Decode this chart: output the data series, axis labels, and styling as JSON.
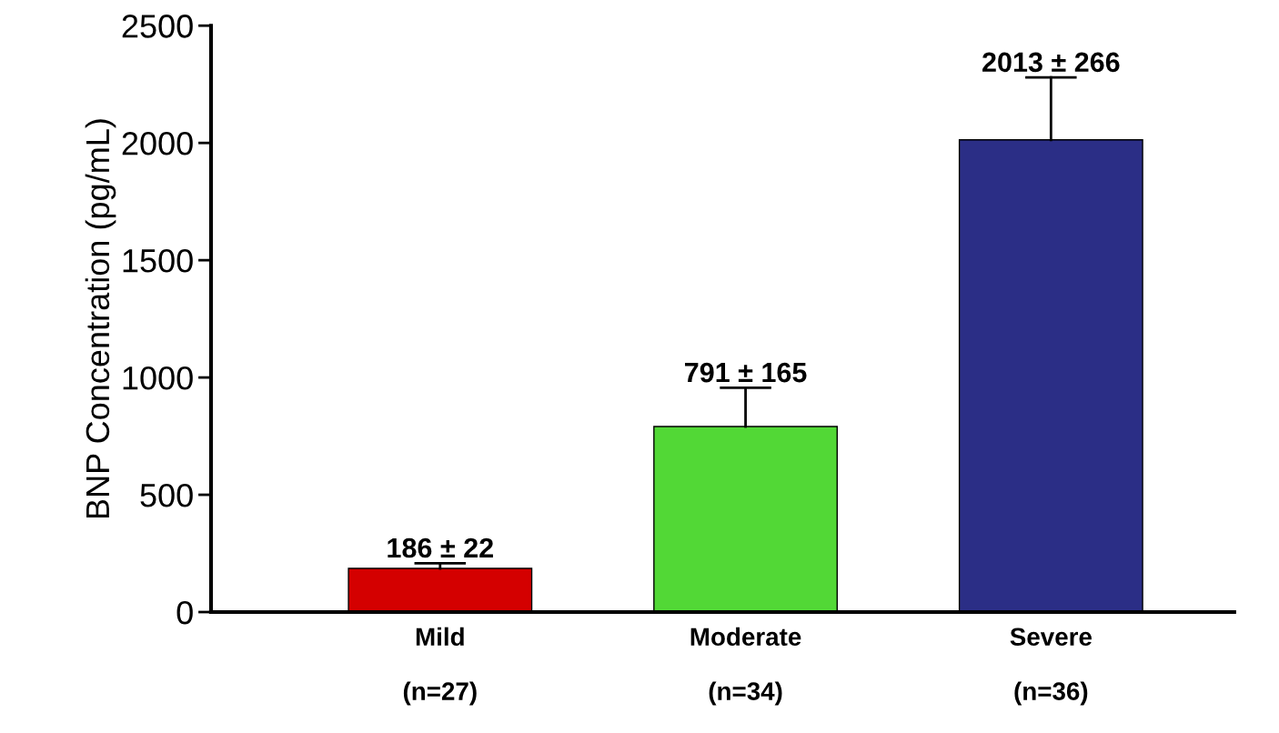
{
  "chart_data": {
    "type": "bar",
    "ylabel": "BNP Concentration (pg/mL)",
    "categories": [
      "Mild\n\n(n=27)",
      "Moderate\n\n(n=34)",
      "Severe\n\n(n=36)"
    ],
    "values": [
      186,
      791,
      2013
    ],
    "errors": [
      [
        186,
        208
      ],
      [
        791,
        956
      ],
      [
        2013,
        2279
      ]
    ],
    "value_labels": [
      "186 ± 22",
      "791 ± 165",
      "2013 ± 266"
    ],
    "colors": [
      "#d40000",
      "#52d836",
      "#2b2e86"
    ],
    "ylim": [
      0,
      2500
    ],
    "yticks": [
      0,
      500,
      1000,
      1500,
      2000,
      2500
    ],
    "grid": false,
    "legend": false
  }
}
